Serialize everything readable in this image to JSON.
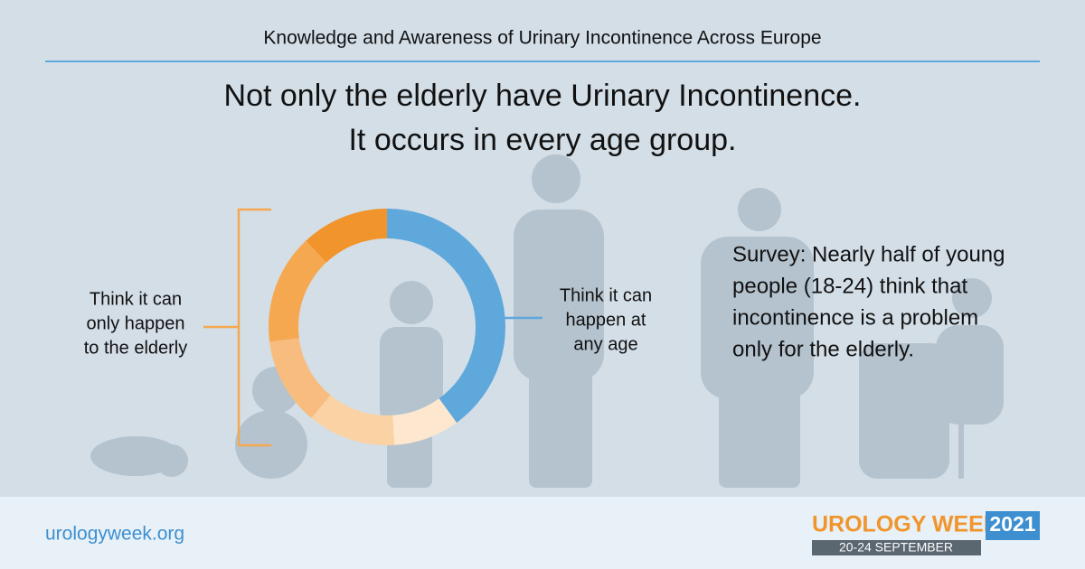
{
  "header": {
    "title": "Knowledge and Awareness of Urinary Incontinence Across Europe"
  },
  "headline": [
    "Not only the elderly have Urinary Incontinence.",
    "It occurs in every age group."
  ],
  "chart_data": {
    "type": "donut",
    "groups": [
      {
        "label_lines": [
          "Think it can",
          "happen at",
          "any age"
        ],
        "values": [
          40
        ],
        "colors": [
          "#5fa8dc"
        ]
      },
      {
        "label_lines": [
          "Think it can",
          "only happen",
          "to the elderly"
        ],
        "values": [
          9,
          12,
          12,
          15,
          12
        ],
        "colors": [
          "#fde8cf",
          "#fbd2a3",
          "#f8bd7e",
          "#f5a850",
          "#f1942b"
        ]
      }
    ]
  },
  "survey": [
    "Survey: Nearly half of young",
    "people (18-24) think that",
    "incontinence is a problem",
    "only for the elderly."
  ],
  "footer": {
    "url": "urologyweek.org",
    "brand": "UROLOGY WEEK",
    "year": "2021",
    "dates": "20-24 SEPTEMBER"
  }
}
